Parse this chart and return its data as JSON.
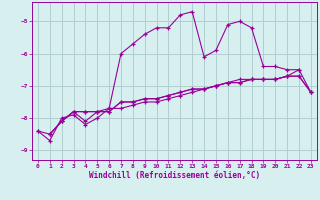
{
  "background_color": "#d8eff0",
  "grid_color": "#b0cfd0",
  "line_color": "#990099",
  "x_label": "Windchill (Refroidissement éolien,°C)",
  "ylim": [
    -9.3,
    -4.4
  ],
  "xlim": [
    -0.5,
    23.5
  ],
  "yticks": [
    -9,
    -8,
    -7,
    -6,
    -5
  ],
  "xticks": [
    0,
    1,
    2,
    3,
    4,
    5,
    6,
    7,
    8,
    9,
    10,
    11,
    12,
    13,
    14,
    15,
    16,
    17,
    18,
    19,
    20,
    21,
    22,
    23
  ],
  "series": [
    [
      null,
      -8.5,
      -8.1,
      -7.8,
      -7.8,
      -7.8,
      -7.8,
      -7.5,
      -7.5,
      -7.4,
      -7.4,
      -7.3,
      -7.2,
      -7.1,
      -7.1,
      -7.0,
      -6.9,
      -6.9,
      -6.8,
      -6.8,
      -6.8,
      -6.7,
      -6.7,
      -7.2
    ],
    [
      null,
      -8.5,
      -8.1,
      -7.8,
      -7.8,
      -7.8,
      -7.8,
      -7.5,
      -7.5,
      -7.4,
      -7.4,
      -7.3,
      -7.2,
      -7.1,
      -7.1,
      -7.0,
      -6.9,
      -6.9,
      -6.8,
      -6.8,
      -6.8,
      -6.7,
      -6.7,
      -7.2
    ],
    [
      -8.4,
      -8.5,
      -8.1,
      -7.8,
      -8.1,
      -7.8,
      -7.7,
      -6.0,
      -5.7,
      -5.4,
      -5.2,
      -5.2,
      -4.8,
      -4.7,
      -6.1,
      -5.9,
      -5.1,
      -5.0,
      -5.2,
      -6.4,
      -6.4,
      -6.5,
      -6.5,
      null
    ],
    [
      -8.4,
      -8.7,
      -8.0,
      -7.9,
      -8.2,
      -8.0,
      -7.7,
      -7.7,
      -7.6,
      -7.5,
      -7.5,
      -7.4,
      -7.3,
      -7.2,
      -7.1,
      -7.0,
      -6.9,
      -6.8,
      -6.8,
      -6.8,
      -6.8,
      -6.7,
      -6.5,
      -7.2
    ]
  ],
  "tick_fontsize": 4.5,
  "label_fontsize": 5.5
}
